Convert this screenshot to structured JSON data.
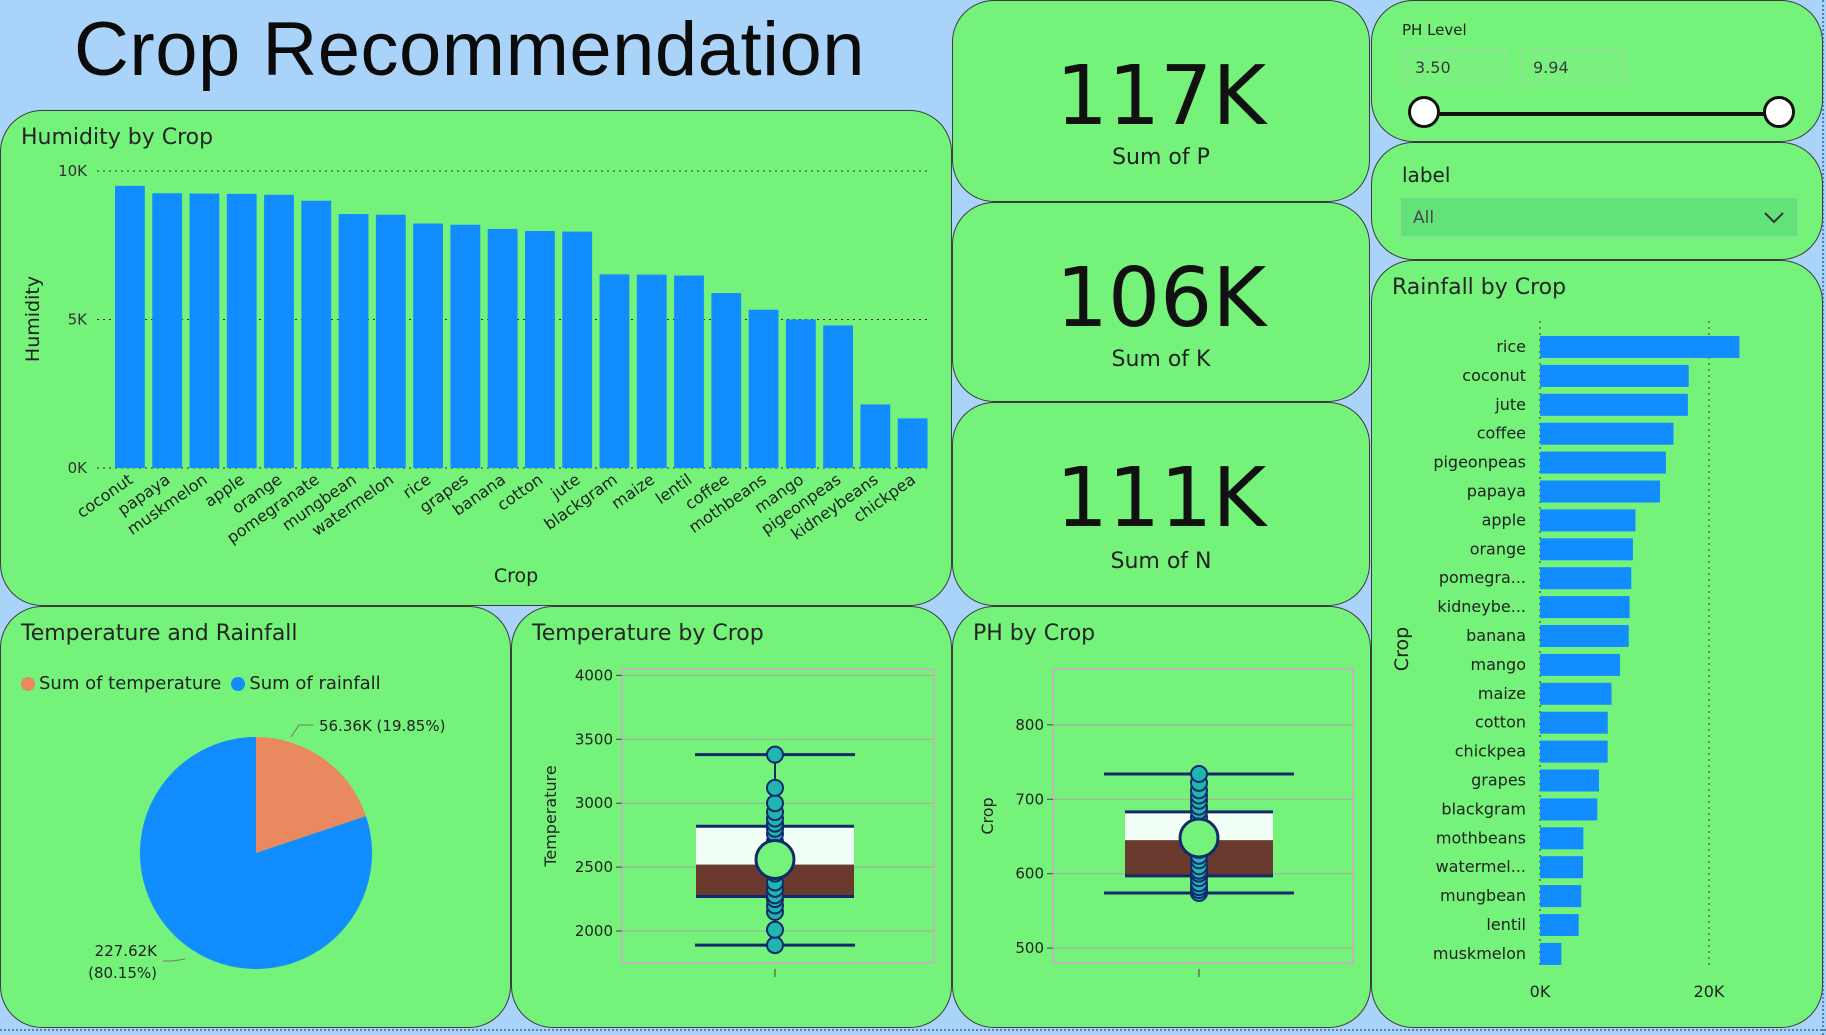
{
  "title": "Crop Recommendation",
  "kpis": [
    {
      "value": "117K",
      "label": "Sum of P"
    },
    {
      "value": "106K",
      "label": "Sum of K"
    },
    {
      "value": "111K",
      "label": "Sum of N"
    }
  ],
  "ph_slicer": {
    "title": "PH Level",
    "min": "3.50",
    "max": "9.94"
  },
  "label_slicer": {
    "title": "label",
    "selected": "All"
  },
  "colors": {
    "bar": "#118dff",
    "tile": "#74f27a",
    "background": "#a9d3f8",
    "pie_temperature": "#e8895f",
    "pie_rainfall": "#118dff",
    "box_upper": "#f2fff6",
    "box_lower": "#6b3a2e",
    "box_line": "#122a6b",
    "point_fill": "#20b6b0"
  },
  "chart_data": [
    {
      "id": "humidity",
      "type": "bar",
      "title": "Humidity by Crop",
      "xlabel": "Crop",
      "ylabel": "Humidity",
      "ylim": [
        0,
        10000
      ],
      "yticks": [
        "0K",
        "5K",
        "10K"
      ],
      "categories": [
        "coconut",
        "papaya",
        "muskmelon",
        "apple",
        "orange",
        "pomegranate",
        "mungbean",
        "watermelon",
        "rice",
        "grapes",
        "banana",
        "cotton",
        "jute",
        "blackgram",
        "maize",
        "lentil",
        "coffee",
        "mothbeans",
        "mango",
        "pigeonpeas",
        "kidneybeans",
        "chickpea"
      ],
      "values": [
        9500,
        9250,
        9240,
        9230,
        9200,
        9000,
        8550,
        8530,
        8230,
        8190,
        8050,
        7980,
        7960,
        6520,
        6510,
        6480,
        5890,
        5330,
        5000,
        4800,
        2140,
        1670
      ]
    },
    {
      "id": "rainfall",
      "type": "bar",
      "orientation": "horizontal",
      "title": "Rainfall by Crop",
      "ylabel": "Crop",
      "xlim": [
        0,
        24000
      ],
      "xticks": [
        "0K",
        "20K"
      ],
      "categories": [
        "rice",
        "coconut",
        "jute",
        "coffee",
        "pigeonpeas",
        "papaya",
        "apple",
        "orange",
        "pomegra...",
        "kidneybe...",
        "banana",
        "mango",
        "maize",
        "cotton",
        "chickpea",
        "grapes",
        "blackgram",
        "mothbeans",
        "watermel...",
        "mungbean",
        "lentil",
        "muskmelon"
      ],
      "values": [
        23600,
        17600,
        17500,
        15800,
        14900,
        14200,
        11300,
        11000,
        10800,
        10600,
        10500,
        9460,
        8460,
        8020,
        8010,
        6980,
        6780,
        5130,
        5090,
        4880,
        4580,
        2530
      ]
    },
    {
      "id": "temp-rain-pie",
      "type": "pie",
      "title": "Temperature and Rainfall",
      "series": [
        {
          "name": "Sum of temperature",
          "value": 56360,
          "label": "56.36K (19.85%)",
          "percent": 19.85
        },
        {
          "name": "Sum of rainfall",
          "value": 227620,
          "label_line1": "227.62K",
          "label_line2": "(80.15%)",
          "percent": 80.15
        }
      ]
    },
    {
      "id": "temperature-box",
      "type": "box",
      "title": "Temperature by Crop",
      "ylabel": "Temperature",
      "ylim": [
        1750,
        4050
      ],
      "yticks": [
        2000,
        2500,
        3000,
        3500,
        4000
      ],
      "whisker_low": 1890,
      "q1": 2270,
      "median": 2520,
      "q3": 2820,
      "whisker_high": 3380,
      "mean": 2560,
      "points": [
        1890,
        2010,
        2150,
        2200,
        2250,
        2280,
        2330,
        2380,
        2450,
        2520,
        2600,
        2650,
        2700,
        2760,
        2800,
        2840,
        2880,
        2930,
        3000,
        3120,
        3380
      ]
    },
    {
      "id": "ph-box",
      "type": "box",
      "title": "PH by Crop",
      "ylabel": "Crop",
      "ylim": [
        480,
        875
      ],
      "yticks": [
        500,
        600,
        700,
        800
      ],
      "whisker_low": 574,
      "q1": 597,
      "median": 645,
      "q3": 683,
      "whisker_high": 734,
      "mean": 648,
      "points": [
        574,
        578,
        582,
        587,
        594,
        600,
        604,
        610,
        618,
        624,
        632,
        640,
        650,
        658,
        666,
        676,
        684,
        690,
        698,
        705,
        712,
        722,
        734
      ]
    }
  ]
}
